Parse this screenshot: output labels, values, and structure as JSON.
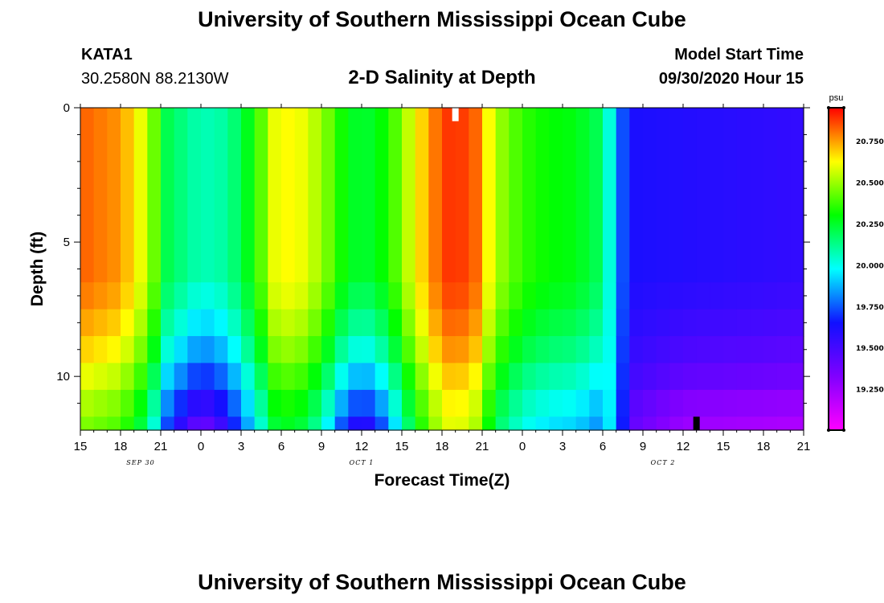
{
  "header": {
    "title_top": "University of Southern Mississippi Ocean Cube",
    "station_id": "KATA1",
    "station_location": "30.2580N 88.2130W",
    "plot_title": "2-D Salinity at Depth",
    "model_start_label": "Model Start Time",
    "model_start_time": "09/30/2020 Hour 15"
  },
  "footer": {
    "title_bottom": "University of Southern Mississippi Ocean Cube"
  },
  "colors": {
    "scale": [
      "#ff00ff",
      "#8000ff",
      "#1010ff",
      "#00ffff",
      "#00ff00",
      "#ffff00",
      "#ff0000"
    ]
  },
  "chart_data": {
    "type": "heatmap",
    "variable": "Salinity",
    "title": "2-D Salinity at Depth",
    "xlabel": "Forecast Time(Z)",
    "ylabel": "Depth (ft)",
    "xlim": [
      0,
      54
    ],
    "ylim": [
      0,
      12
    ],
    "x_ticks": [
      {
        "hour": 0,
        "label": "15"
      },
      {
        "hour": 3,
        "label": "18"
      },
      {
        "hour": 6,
        "label": "21"
      },
      {
        "hour": 9,
        "label": "0"
      },
      {
        "hour": 12,
        "label": "3"
      },
      {
        "hour": 15,
        "label": "6"
      },
      {
        "hour": 18,
        "label": "9"
      },
      {
        "hour": 21,
        "label": "12"
      },
      {
        "hour": 24,
        "label": "15"
      },
      {
        "hour": 27,
        "label": "18"
      },
      {
        "hour": 30,
        "label": "21"
      },
      {
        "hour": 33,
        "label": "0"
      },
      {
        "hour": 36,
        "label": "3"
      },
      {
        "hour": 39,
        "label": "6"
      },
      {
        "hour": 42,
        "label": "9"
      },
      {
        "hour": 45,
        "label": "12"
      },
      {
        "hour": 48,
        "label": "15"
      },
      {
        "hour": 51,
        "label": "18"
      },
      {
        "hour": 54,
        "label": "21"
      }
    ],
    "date_labels": [
      {
        "hour": 4.5,
        "label": "SEP 30"
      },
      {
        "hour": 21,
        "label": "OCT 1"
      },
      {
        "hour": 43.5,
        "label": "OCT 2"
      }
    ],
    "y_ticks": [
      {
        "depth": 0,
        "label": "0"
      },
      {
        "depth": 5,
        "label": "5"
      },
      {
        "depth": 10,
        "label": "10"
      }
    ],
    "y_minor_ticks": [
      1,
      2,
      3,
      4,
      6,
      7,
      8,
      9,
      11
    ],
    "colorbar": {
      "unit": "psu",
      "range": [
        19.0,
        20.95
      ],
      "ticks": [
        {
          "value": 20.75,
          "label": "20.750"
        },
        {
          "value": 20.5,
          "label": "20.500"
        },
        {
          "value": 20.25,
          "label": "20.250"
        },
        {
          "value": 20.0,
          "label": "20.000"
        },
        {
          "value": 19.75,
          "label": "19.750"
        },
        {
          "value": 19.5,
          "label": "19.500"
        },
        {
          "value": 19.25,
          "label": "19.250"
        }
      ]
    },
    "markers": [
      {
        "hour": 28,
        "depth_from": 0,
        "depth_to": 0.5,
        "color": "#ffffff"
      },
      {
        "hour": 46,
        "depth_from": 11.5,
        "depth_to": 12,
        "color": "#000000"
      }
    ],
    "surface_profile": {
      "description": "salinity (psu) at surface vs forecast hour",
      "points": [
        [
          0,
          20.83
        ],
        [
          3,
          20.76
        ],
        [
          5,
          20.55
        ],
        [
          6.5,
          20.2
        ],
        [
          9,
          20.06
        ],
        [
          11,
          20.1
        ],
        [
          13,
          20.32
        ],
        [
          14.5,
          20.6
        ],
        [
          16,
          20.64
        ],
        [
          18,
          20.5
        ],
        [
          19.5,
          20.32
        ],
        [
          21,
          20.22
        ],
        [
          23,
          20.33
        ],
        [
          25,
          20.62
        ],
        [
          27,
          20.86
        ],
        [
          28,
          20.9
        ],
        [
          29.5,
          20.82
        ],
        [
          31,
          20.52
        ],
        [
          33,
          20.36
        ],
        [
          35,
          20.3
        ],
        [
          37,
          20.28
        ],
        [
          38.5,
          20.2
        ],
        [
          39.5,
          20.02
        ],
        [
          40,
          19.85
        ],
        [
          41,
          19.62
        ],
        [
          54,
          19.55
        ]
      ]
    },
    "depth_layers": [
      {
        "depth_from": 0,
        "depth_to": 6.5,
        "offset": 0.0,
        "midnight_dip": 0.0,
        "late_pink": 0.0
      },
      {
        "depth_from": 6.5,
        "depth_to": 7.5,
        "offset": -0.03,
        "midnight_dip": 0.03,
        "late_pink": 0.03
      },
      {
        "depth_from": 7.5,
        "depth_to": 8.5,
        "offset": -0.08,
        "midnight_dip": 0.06,
        "late_pink": 0.07
      },
      {
        "depth_from": 8.5,
        "depth_to": 9.5,
        "offset": -0.14,
        "midnight_dip": 0.1,
        "late_pink": 0.12
      },
      {
        "depth_from": 9.5,
        "depth_to": 10.5,
        "offset": -0.22,
        "midnight_dip": 0.15,
        "late_pink": 0.18
      },
      {
        "depth_from": 10.5,
        "depth_to": 11.5,
        "offset": -0.3,
        "midnight_dip": 0.22,
        "late_pink": 0.28
      },
      {
        "depth_from": 11.5,
        "depth_to": 12,
        "offset": -0.36,
        "midnight_dip": 0.3,
        "late_pink": 0.34
      }
    ]
  }
}
